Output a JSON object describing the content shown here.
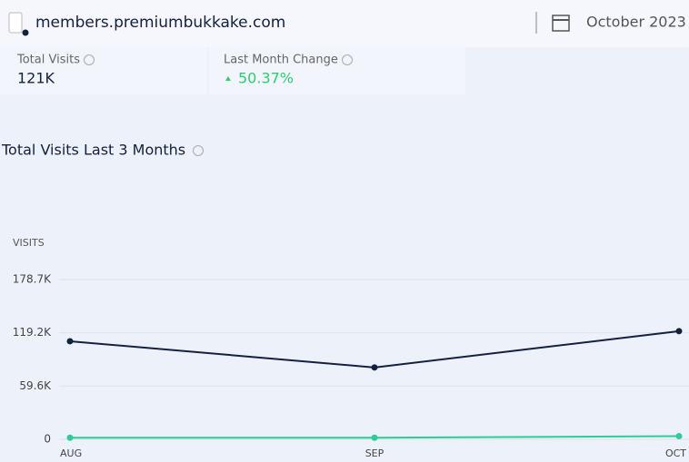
{
  "header": {
    "domain": "members.premiumbukkake.com",
    "date": "October 2023"
  },
  "stats": [
    {
      "label": "Total Visits",
      "value": "121K"
    },
    {
      "label": "Last Month Change",
      "value": "50.37%"
    }
  ],
  "chart_data": {
    "type": "line",
    "title": "Total Visits Last 3 Months",
    "y_label": "VISITS",
    "categories": [
      "AUG",
      "SEP",
      "OCT"
    ],
    "series": [
      {
        "color": "#14213d",
        "values": [
          109700,
          80400,
          121000
        ]
      },
      {
        "color": "#2ecc9a",
        "values": [
          1800,
          1800,
          3500
        ]
      }
    ],
    "ylim": [
      0,
      178700
    ],
    "yticks": [
      0,
      {
        "value": 59600,
        "label": "59.6K"
      },
      {
        "value": 119200,
        "label": "119.2K"
      },
      {
        "value": 178700,
        "label": "178.7K"
      }
    ],
    "grid": true
  }
}
